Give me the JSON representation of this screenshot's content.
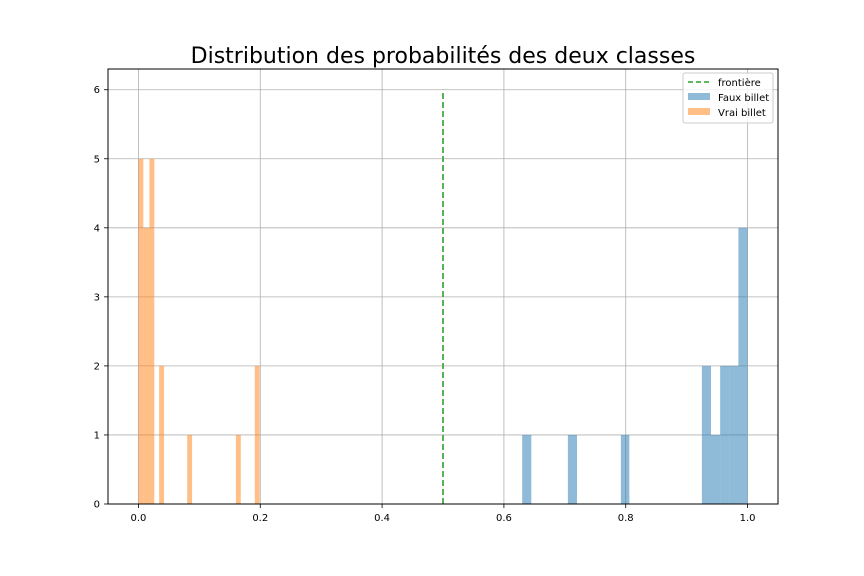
{
  "chart_data": {
    "type": "histogram",
    "title": "Distribution des probabilités des deux classes",
    "xlabel": "",
    "ylabel": "",
    "xlim": [
      -0.05,
      1.05
    ],
    "ylim": [
      0,
      6.3
    ],
    "xticks": [
      "0.0",
      "0.2",
      "0.4",
      "0.6",
      "0.8",
      "1.0"
    ],
    "xtick_values": [
      0.0,
      0.2,
      0.4,
      0.6,
      0.8,
      1.0
    ],
    "yticks": [
      "0",
      "1",
      "2",
      "3",
      "4",
      "5",
      "6"
    ],
    "ytick_values": [
      0,
      1,
      2,
      3,
      4,
      5,
      6
    ],
    "grid": true,
    "legend_position": "top-right",
    "boundary": {
      "name": "frontière",
      "x": 0.5,
      "y_range": [
        0,
        6
      ],
      "color": "#2ca02c",
      "style": "dashed"
    },
    "series": [
      {
        "name": "Faux billet",
        "color": "#1f77b4",
        "alpha": 0.5,
        "bins": [
          {
            "x0": 0.63,
            "x1": 0.645,
            "count": 1
          },
          {
            "x0": 0.705,
            "x1": 0.72,
            "count": 1
          },
          {
            "x0": 0.792,
            "x1": 0.806,
            "count": 1
          },
          {
            "x0": 0.925,
            "x1": 0.94,
            "count": 2
          },
          {
            "x0": 0.94,
            "x1": 0.955,
            "count": 1
          },
          {
            "x0": 0.955,
            "x1": 0.97,
            "count": 2
          },
          {
            "x0": 0.97,
            "x1": 0.985,
            "count": 2
          },
          {
            "x0": 0.985,
            "x1": 1.0,
            "count": 4
          }
        ]
      },
      {
        "name": "Vrai billet",
        "color": "#ff7f0e",
        "alpha": 0.5,
        "bins": [
          {
            "x0": 0.0,
            "x1": 0.008,
            "count": 5
          },
          {
            "x0": 0.008,
            "x1": 0.018,
            "count": 4
          },
          {
            "x0": 0.018,
            "x1": 0.026,
            "count": 5
          },
          {
            "x0": 0.034,
            "x1": 0.042,
            "count": 2
          },
          {
            "x0": 0.08,
            "x1": 0.088,
            "count": 1
          },
          {
            "x0": 0.16,
            "x1": 0.168,
            "count": 1
          },
          {
            "x0": 0.191,
            "x1": 0.199,
            "count": 2
          }
        ]
      }
    ]
  }
}
